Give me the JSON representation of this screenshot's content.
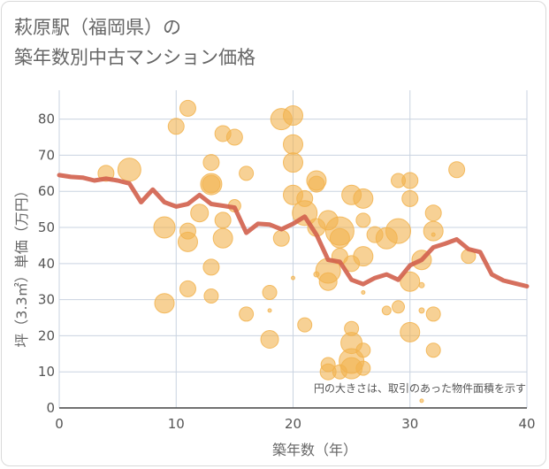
{
  "title_line1": "萩原駅（福岡県）の",
  "title_line2": "築年数別中古マンション価格",
  "chart_data": {
    "type": "scatter",
    "xlabel": "築年数（年）",
    "ylabel": "坪（3.3㎡）単価（万円）",
    "xlim": [
      0,
      40
    ],
    "ylim": [
      0,
      88
    ],
    "xticks": [
      0,
      10,
      20,
      30,
      40
    ],
    "yticks": [
      0,
      10,
      20,
      30,
      40,
      50,
      60,
      70,
      80
    ],
    "grid": true,
    "note": "円の大きさは、取引のあった物件面積を示す",
    "colors": {
      "bubble": "#f2b34e",
      "line": "#d2614c",
      "grid": "#c9d3e0"
    },
    "points": [
      {
        "x": 4,
        "y": 65,
        "s": 9
      },
      {
        "x": 6,
        "y": 66,
        "s": 13
      },
      {
        "x": 10,
        "y": 78,
        "s": 9
      },
      {
        "x": 11,
        "y": 83,
        "s": 9
      },
      {
        "x": 9,
        "y": 50,
        "s": 12
      },
      {
        "x": 11,
        "y": 49,
        "s": 9
      },
      {
        "x": 11,
        "y": 46,
        "s": 11
      },
      {
        "x": 12,
        "y": 54,
        "s": 10
      },
      {
        "x": 13,
        "y": 68,
        "s": 9
      },
      {
        "x": 13,
        "y": 62,
        "s": 12
      },
      {
        "x": 13,
        "y": 62,
        "s": 10
      },
      {
        "x": 14,
        "y": 76,
        "s": 9
      },
      {
        "x": 15,
        "y": 75,
        "s": 9
      },
      {
        "x": 14,
        "y": 52,
        "s": 9
      },
      {
        "x": 15,
        "y": 56,
        "s": 7
      },
      {
        "x": 14,
        "y": 47,
        "s": 11
      },
      {
        "x": 16,
        "y": 65,
        "s": 8
      },
      {
        "x": 13,
        "y": 39,
        "s": 9
      },
      {
        "x": 11,
        "y": 33,
        "s": 9
      },
      {
        "x": 9,
        "y": 29,
        "s": 11
      },
      {
        "x": 13,
        "y": 31,
        "s": 8
      },
      {
        "x": 16,
        "y": 26,
        "s": 8
      },
      {
        "x": 18,
        "y": 32,
        "s": 8
      },
      {
        "x": 18,
        "y": 27,
        "s": 2
      },
      {
        "x": 18,
        "y": 19,
        "s": 10
      },
      {
        "x": 19,
        "y": 80,
        "s": 12
      },
      {
        "x": 20,
        "y": 81,
        "s": 11
      },
      {
        "x": 20,
        "y": 73,
        "s": 11
      },
      {
        "x": 20,
        "y": 68,
        "s": 11
      },
      {
        "x": 20,
        "y": 59,
        "s": 11
      },
      {
        "x": 20,
        "y": 36,
        "s": 2
      },
      {
        "x": 19,
        "y": 47,
        "s": 9
      },
      {
        "x": 21,
        "y": 54,
        "s": 14
      },
      {
        "x": 21,
        "y": 58,
        "s": 9
      },
      {
        "x": 22,
        "y": 63,
        "s": 11
      },
      {
        "x": 22,
        "y": 62,
        "s": 9
      },
      {
        "x": 22,
        "y": 50,
        "s": 10
      },
      {
        "x": 21,
        "y": 23,
        "s": 8
      },
      {
        "x": 22,
        "y": 37,
        "s": 3
      },
      {
        "x": 23,
        "y": 52,
        "s": 11
      },
      {
        "x": 23,
        "y": 38,
        "s": 14
      },
      {
        "x": 23,
        "y": 35,
        "s": 10
      },
      {
        "x": 23,
        "y": 12,
        "s": 8
      },
      {
        "x": 23,
        "y": 10,
        "s": 9
      },
      {
        "x": 24,
        "y": 49,
        "s": 16
      },
      {
        "x": 24,
        "y": 47,
        "s": 11
      },
      {
        "x": 24,
        "y": 42,
        "s": 9
      },
      {
        "x": 24,
        "y": 10,
        "s": 8
      },
      {
        "x": 25,
        "y": 59,
        "s": 11
      },
      {
        "x": 25,
        "y": 22,
        "s": 8
      },
      {
        "x": 25,
        "y": 18,
        "s": 12
      },
      {
        "x": 25,
        "y": 13,
        "s": 14
      },
      {
        "x": 25,
        "y": 11,
        "s": 12
      },
      {
        "x": 25,
        "y": 40,
        "s": 9
      },
      {
        "x": 26,
        "y": 58,
        "s": 11
      },
      {
        "x": 26,
        "y": 52,
        "s": 8
      },
      {
        "x": 26,
        "y": 42,
        "s": 11
      },
      {
        "x": 26,
        "y": 32,
        "s": 2
      },
      {
        "x": 26,
        "y": 16,
        "s": 8
      },
      {
        "x": 26,
        "y": 11,
        "s": 8
      },
      {
        "x": 27,
        "y": 48,
        "s": 9
      },
      {
        "x": 28,
        "y": 47,
        "s": 12
      },
      {
        "x": 28,
        "y": 27,
        "s": 5
      },
      {
        "x": 29,
        "y": 49,
        "s": 14
      },
      {
        "x": 29,
        "y": 63,
        "s": 8
      },
      {
        "x": 29,
        "y": 28,
        "s": 7
      },
      {
        "x": 30,
        "y": 63,
        "s": 9
      },
      {
        "x": 30,
        "y": 58,
        "s": 9
      },
      {
        "x": 30,
        "y": 35,
        "s": 11
      },
      {
        "x": 30,
        "y": 21,
        "s": 11
      },
      {
        "x": 31,
        "y": 41,
        "s": 11
      },
      {
        "x": 31,
        "y": 34,
        "s": 3
      },
      {
        "x": 31,
        "y": 27,
        "s": 3
      },
      {
        "x": 31,
        "y": 2,
        "s": 2
      },
      {
        "x": 32,
        "y": 54,
        "s": 9
      },
      {
        "x": 32,
        "y": 49,
        "s": 11
      },
      {
        "x": 32,
        "y": 48,
        "s": 2
      },
      {
        "x": 32,
        "y": 26,
        "s": 8
      },
      {
        "x": 32,
        "y": 16,
        "s": 8
      },
      {
        "x": 34,
        "y": 66,
        "s": 9
      },
      {
        "x": 35,
        "y": 42,
        "s": 8
      }
    ],
    "line": {
      "x": [
        0,
        1,
        2,
        3,
        4,
        5,
        6,
        7,
        8,
        9,
        10,
        11,
        12,
        13,
        14,
        15,
        16,
        17,
        18,
        19,
        20,
        21,
        22,
        23,
        24,
        25,
        26,
        27,
        28,
        29,
        30,
        31,
        32,
        33,
        34,
        35,
        36,
        37,
        38,
        39,
        40
      ],
      "y": [
        64.5,
        64,
        63.8,
        63,
        63.5,
        63,
        62.2,
        57,
        60.5,
        57,
        55.8,
        56.5,
        59,
        56.5,
        56,
        55.5,
        48.5,
        51,
        50.8,
        49.5,
        51,
        53,
        48,
        41,
        40.5,
        35.5,
        34.3,
        36,
        37,
        35.5,
        39.5,
        41,
        44.5,
        45.5,
        46.7,
        44,
        43.2,
        37,
        35.3,
        34.5,
        33.7
      ]
    }
  }
}
